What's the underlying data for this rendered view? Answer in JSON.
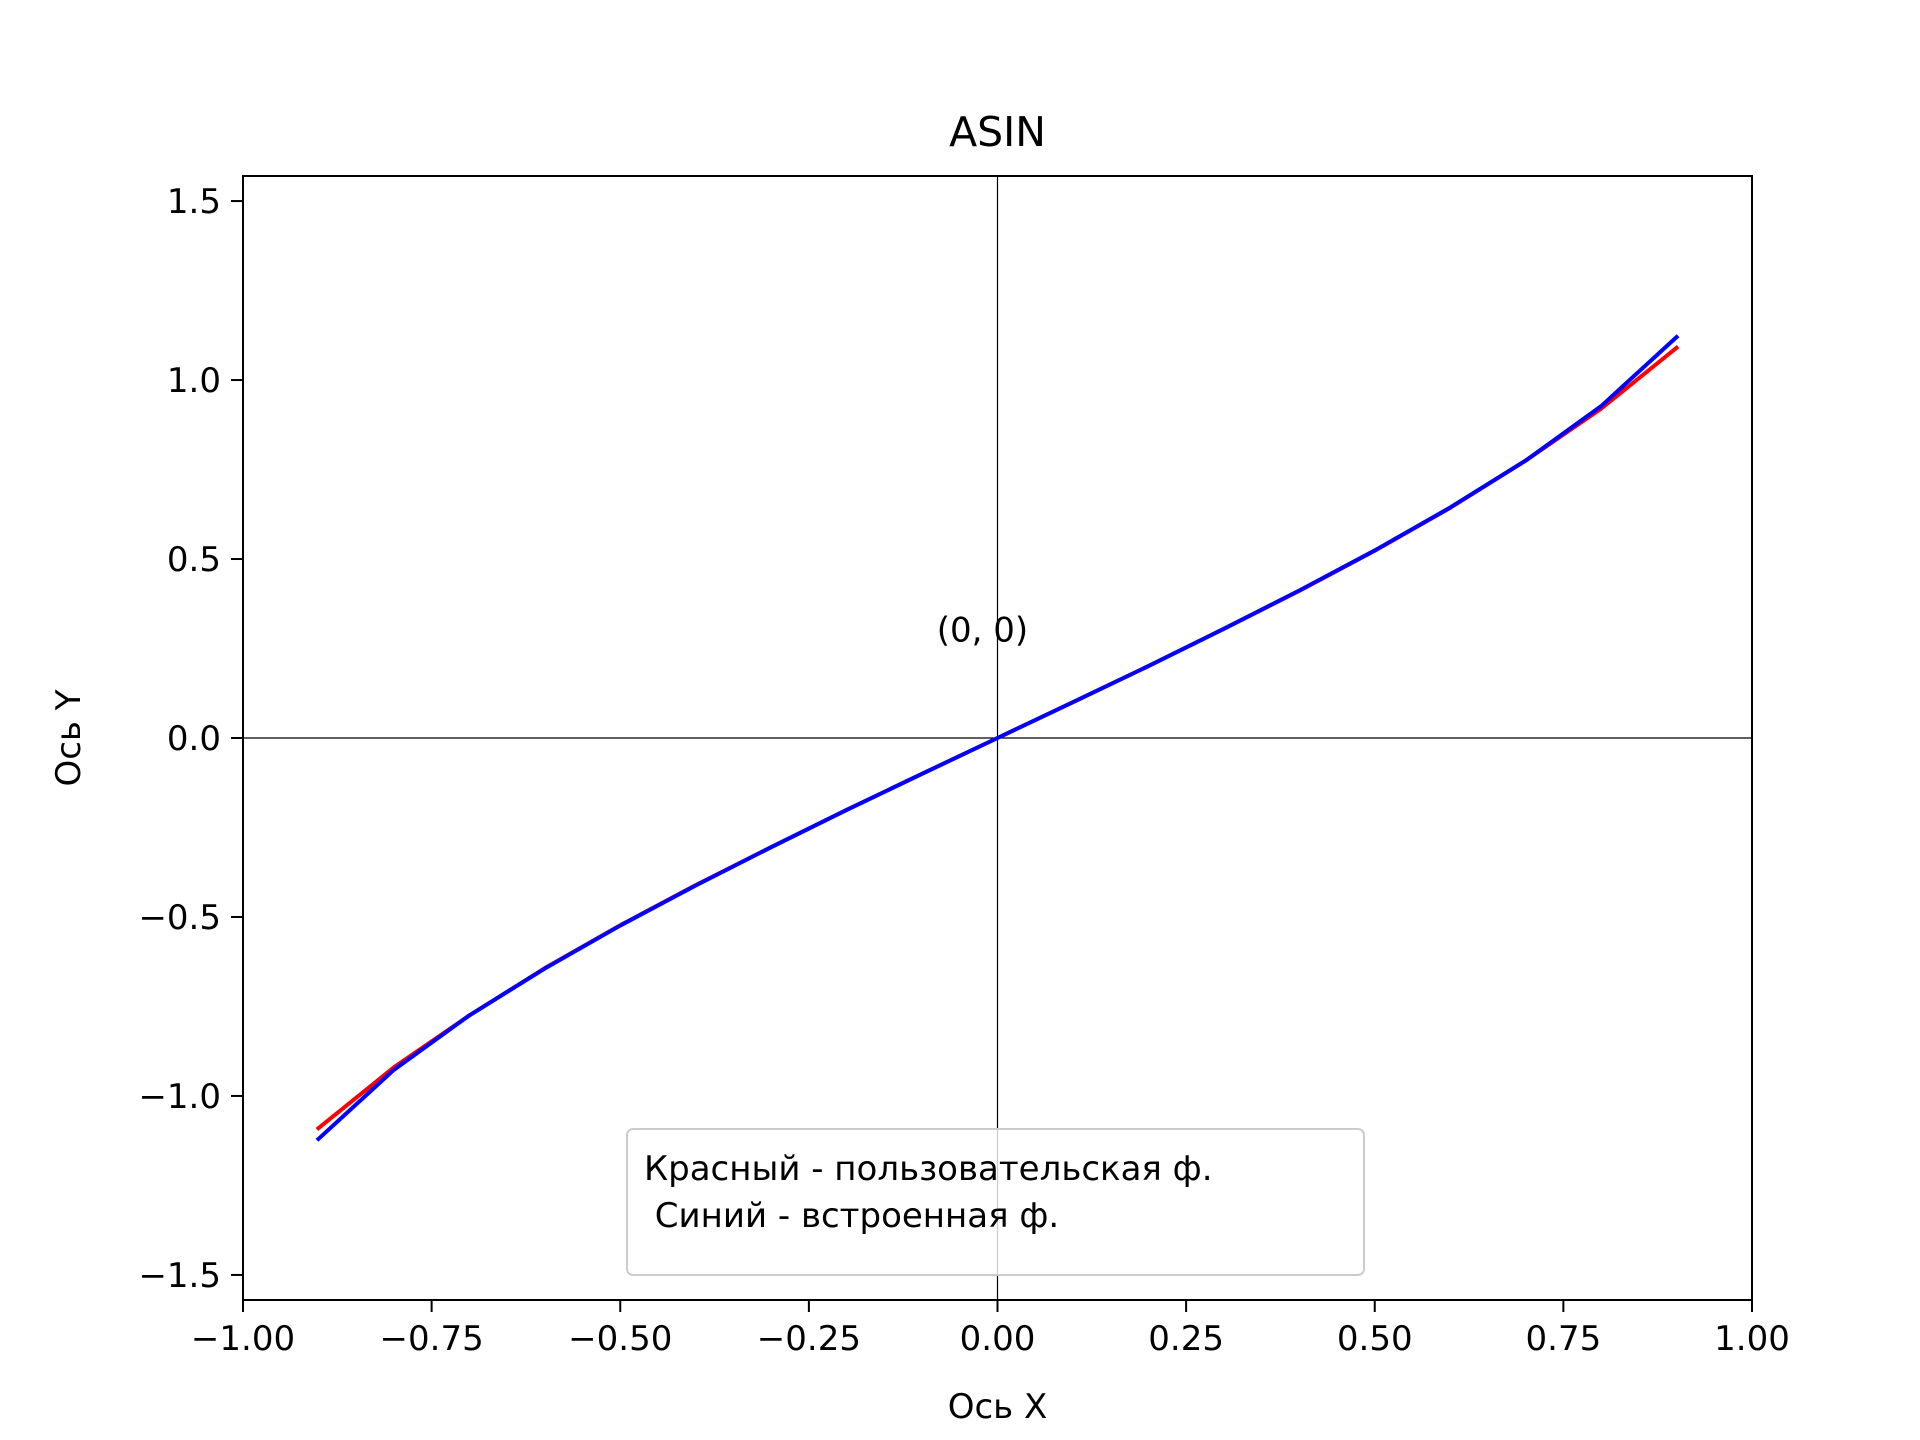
{
  "chart_data": {
    "type": "line",
    "title": "ASIN",
    "xlabel": "Ось X",
    "ylabel": "Ось Y",
    "xlim": [
      -1.0,
      1.0
    ],
    "ylim": [
      -1.57,
      1.57
    ],
    "grid": false,
    "x": [
      -0.9,
      -0.8,
      -0.7,
      -0.6,
      -0.5,
      -0.4,
      -0.3,
      -0.2,
      -0.1,
      0.0,
      0.1,
      0.2,
      0.3,
      0.4,
      0.5,
      0.6,
      0.7,
      0.8,
      0.9
    ],
    "series": [
      {
        "color": "#ff0000",
        "values": [
          -1.09,
          -0.92,
          -0.775,
          -0.643,
          -0.523,
          -0.411,
          -0.305,
          -0.201,
          -0.1,
          0.0,
          0.1,
          0.201,
          0.305,
          0.411,
          0.523,
          0.643,
          0.775,
          0.92,
          1.09
        ]
      },
      {
        "color": "#0000ff",
        "values": [
          -1.12,
          -0.927,
          -0.775,
          -0.644,
          -0.524,
          -0.412,
          -0.305,
          -0.201,
          -0.1,
          0.0,
          0.1,
          0.201,
          0.305,
          0.412,
          0.524,
          0.644,
          0.775,
          0.927,
          1.12
        ]
      }
    ],
    "x_ticks": [
      "−1.00",
      "−0.75",
      "−0.50",
      "−0.25",
      "0.00",
      "0.25",
      "0.50",
      "0.75",
      "1.00"
    ],
    "x_tick_values": [
      -1.0,
      -0.75,
      -0.5,
      -0.25,
      0.0,
      0.25,
      0.5,
      0.75,
      1.0
    ],
    "y_ticks": [
      "−1.5",
      "−1.0",
      "−0.5",
      "0.0",
      "0.5",
      "1.0",
      "1.5"
    ],
    "y_tick_values": [
      -1.5,
      -1.0,
      -0.5,
      0.0,
      0.5,
      1.0,
      1.5
    ],
    "annotation": {
      "text": "(0, 0)",
      "x": -0.02,
      "y": 0.27
    },
    "reference_lines": {
      "x": 0,
      "y": 0
    },
    "legend": {
      "placement": "lower-center",
      "lines": [
        "Красный - пользовательская ф.",
        " Синий - встроенная ф."
      ]
    }
  }
}
